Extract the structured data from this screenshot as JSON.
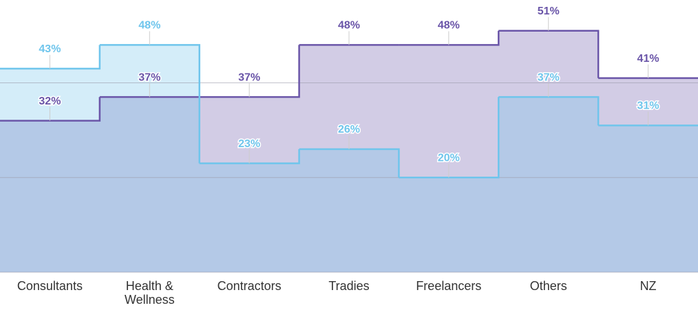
{
  "chart_data": {
    "type": "step-area",
    "categories": [
      "Consultants",
      "Health & Wellness",
      "Contractors",
      "Tradies",
      "Freelancers",
      "Others",
      "NZ"
    ],
    "series": [
      {
        "color": "#6a55a8",
        "values": [
          32,
          37,
          37,
          48,
          48,
          51,
          41
        ],
        "value_labels": [
          "32%",
          "37%",
          "37%",
          "48%",
          "48%",
          "51%",
          "41%"
        ]
      },
      {
        "color": "#6fc5ec",
        "values": [
          43,
          48,
          23,
          26,
          20,
          37,
          31
        ],
        "value_labels": [
          "43%",
          "48%",
          "23%",
          "26%",
          "20%",
          "37%",
          "31%"
        ]
      }
    ],
    "ylim": [
      0,
      57.5
    ],
    "yticks": [
      0,
      20,
      40
    ],
    "grid": true
  }
}
